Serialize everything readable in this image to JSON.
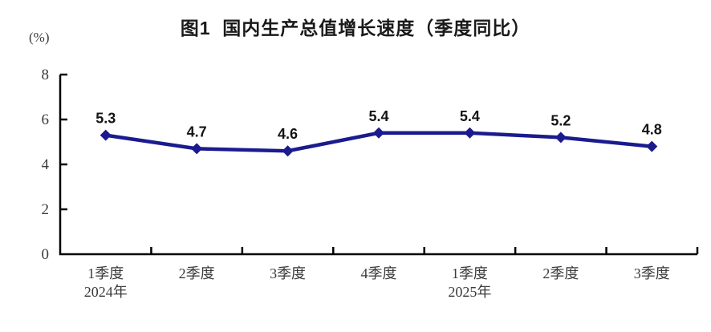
{
  "figure": {
    "title": "图1  国内生产总值增长速度（季度同比）",
    "unit_label": "(%)"
  },
  "chart_data": {
    "type": "line",
    "title": "图1  国内生产总值增长速度（季度同比）",
    "ylabel": "(%)",
    "xlabel": "",
    "categories": [
      "1季度",
      "2季度",
      "3季度",
      "4季度",
      "1季度",
      "2季度",
      "3季度"
    ],
    "category_year_labels": [
      "2024年",
      "",
      "",
      "",
      "2025年",
      "",
      ""
    ],
    "values": [
      5.3,
      4.7,
      4.6,
      5.4,
      5.4,
      5.2,
      4.8
    ],
    "data_labels": [
      "5.3",
      "4.7",
      "4.6",
      "5.4",
      "5.4",
      "5.2",
      "4.8"
    ],
    "ylim": [
      0,
      8
    ],
    "yticks": [
      0,
      2,
      4,
      6,
      8
    ],
    "grid": false,
    "legend_position": "none",
    "marker": "diamond",
    "series_color": "#1b1b8f",
    "axis_color": "#000000",
    "tick_label_color": "#3a3a3a",
    "data_label_color": "#141414"
  }
}
